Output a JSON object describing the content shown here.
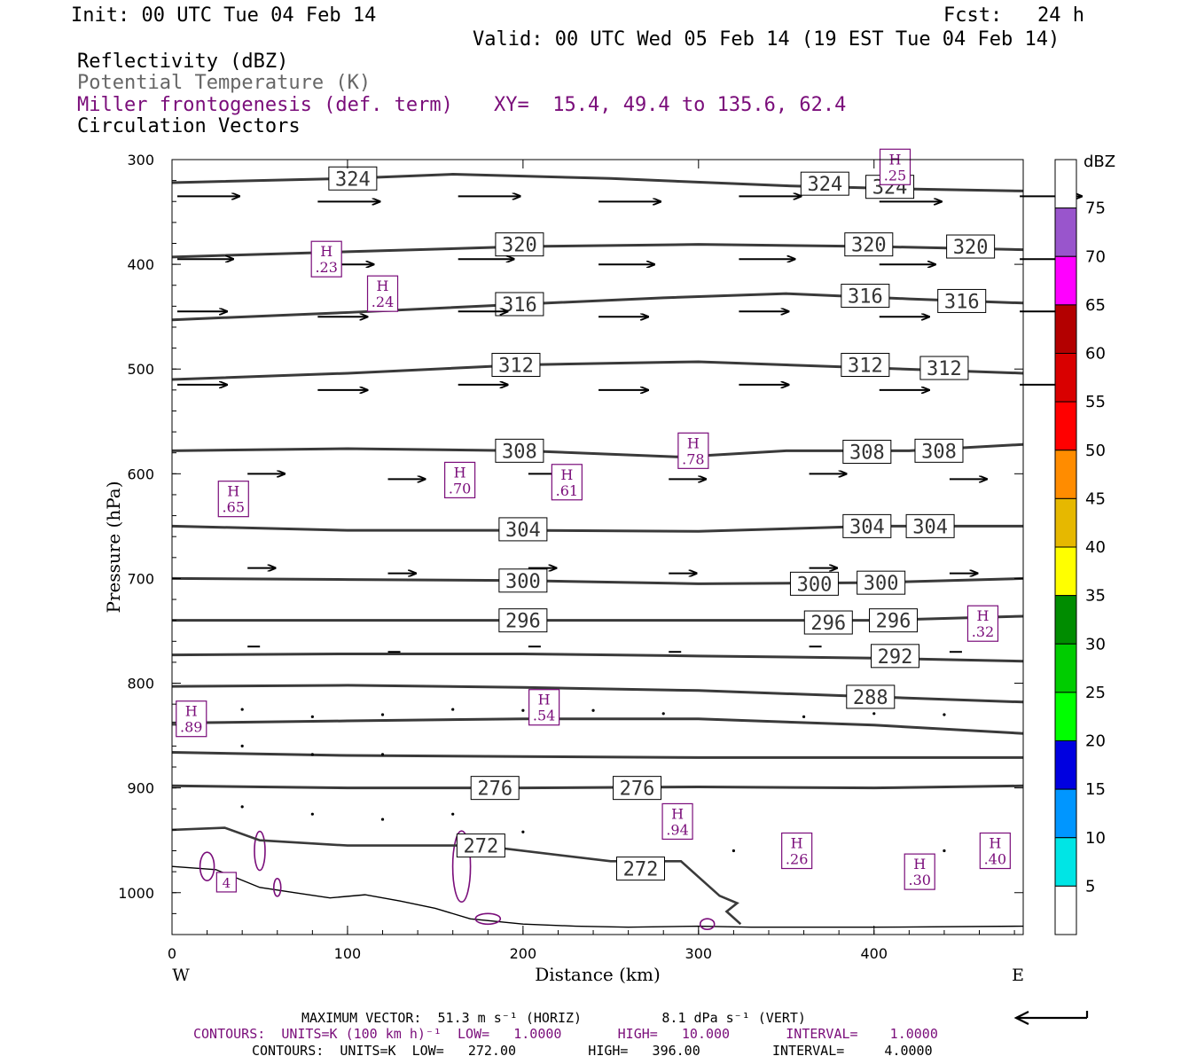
{
  "header": {
    "init": "Init: 00 UTC Tue 04 Feb 14",
    "fcst": "Fcst:   24 h",
    "valid": "Valid: 00 UTC Wed 05 Feb 14 (19 EST Tue 04 Feb 14)",
    "field1": "Reflectivity (dBZ)",
    "field2": "Potential Temperature (K)",
    "field3": "Miller frontogenesis (def. term)",
    "xy": "XY=  15.4, 49.4 to 135.6, 62.4",
    "field4": "Circulation Vectors"
  },
  "colors": {
    "theta": "#3a3a3a",
    "frontogenesis": "#7a0d7a",
    "vectors": "#000000"
  },
  "chart_data": {
    "type": "line",
    "xlabel": "Distance (km)",
    "ylabel": "Pressure (hPa)",
    "xlim": [
      0,
      485
    ],
    "ylim": [
      300,
      1040
    ],
    "y_scale": "linear-inverted",
    "x_ticks": [
      "0",
      "100",
      "200",
      "300",
      "400"
    ],
    "y_ticks": [
      "300",
      "400",
      "500",
      "600",
      "700",
      "800",
      "900",
      "1000"
    ],
    "x_left_label": "W",
    "x_right_label": "E",
    "theta_contours": [
      {
        "level": 324,
        "label": "324",
        "x": [
          0,
          100,
          160,
          250,
          350,
          420,
          485
        ],
        "y": [
          322,
          318,
          314,
          318,
          325,
          328,
          330
        ],
        "labels_at": [
          [
            103,
            318
          ],
          [
            372,
            323
          ],
          [
            409,
            326
          ]
        ]
      },
      {
        "level": 320,
        "label": "320",
        "x": [
          0,
          100,
          200,
          300,
          400,
          485
        ],
        "y": [
          393,
          388,
          383,
          381,
          383,
          386
        ],
        "labels_at": [
          [
            198,
            381
          ],
          [
            397,
            381
          ],
          [
            455,
            383
          ]
        ]
      },
      {
        "level": 316,
        "label": "316",
        "x": [
          0,
          100,
          200,
          280,
          350,
          420,
          485
        ],
        "y": [
          453,
          446,
          438,
          432,
          428,
          433,
          437
        ],
        "labels_at": [
          [
            198,
            438
          ],
          [
            395,
            430
          ],
          [
            450,
            435
          ]
        ]
      },
      {
        "level": 312,
        "label": "312",
        "x": [
          0,
          100,
          200,
          300,
          400,
          485
        ],
        "y": [
          510,
          504,
          496,
          493,
          499,
          504
        ],
        "labels_at": [
          [
            196,
            496
          ],
          [
            395,
            496
          ],
          [
            440,
            499
          ]
        ]
      },
      {
        "level": 308,
        "label": "308",
        "x": [
          0,
          100,
          200,
          290,
          350,
          420,
          485
        ],
        "y": [
          578,
          576,
          578,
          584,
          578,
          578,
          572
        ],
        "labels_at": [
          [
            198,
            578
          ],
          [
            396,
            579
          ],
          [
            437,
            578
          ]
        ]
      },
      {
        "level": 304,
        "label": "304",
        "x": [
          0,
          100,
          200,
          300,
          400,
          485
        ],
        "y": [
          650,
          654,
          654,
          655,
          650,
          650
        ],
        "labels_at": [
          [
            200,
            653
          ],
          [
            396,
            650
          ],
          [
            432,
            650
          ]
        ]
      },
      {
        "level": 300,
        "label": "300",
        "x": [
          0,
          100,
          200,
          300,
          400,
          485
        ],
        "y": [
          700,
          701,
          702,
          705,
          704,
          700
        ],
        "labels_at": [
          [
            200,
            702
          ],
          [
            366,
            705
          ],
          [
            404,
            704
          ]
        ]
      },
      {
        "level": 296,
        "label": "296",
        "x": [
          0,
          100,
          200,
          300,
          400,
          485
        ],
        "y": [
          740,
          740,
          740,
          740,
          740,
          736
        ],
        "labels_at": [
          [
            200,
            740
          ],
          [
            374,
            742
          ],
          [
            411,
            740
          ]
        ]
      },
      {
        "level": 292,
        "label": "292",
        "x": [
          0,
          100,
          200,
          300,
          400,
          485
        ],
        "y": [
          773,
          772,
          772,
          774,
          776,
          779
        ],
        "labels_at": [
          [
            412,
            774
          ]
        ]
      },
      {
        "level": 288,
        "label": "288",
        "x": [
          0,
          100,
          200,
          300,
          400,
          485
        ],
        "y": [
          803,
          802,
          804,
          807,
          813,
          818
        ],
        "labels_at": [
          [
            398,
            813
          ]
        ]
      },
      {
        "level": 284,
        "label": "",
        "x": [
          0,
          100,
          200,
          300,
          400,
          485
        ],
        "y": [
          838,
          836,
          834,
          834,
          840,
          848
        ],
        "labels_at": []
      },
      {
        "level": 280,
        "label": "",
        "x": [
          0,
          100,
          200,
          300,
          400,
          485
        ],
        "y": [
          866,
          869,
          870,
          871,
          871,
          871
        ],
        "labels_at": []
      },
      {
        "level": 276,
        "label": "276",
        "x": [
          0,
          100,
          200,
          300,
          400,
          485
        ],
        "y": [
          898,
          900,
          900,
          899,
          900,
          898
        ],
        "labels_at": [
          [
            184,
            900
          ],
          [
            265,
            900
          ]
        ]
      },
      {
        "level": 272,
        "label": "272",
        "x": [
          0,
          30,
          50,
          100,
          175,
          250,
          290,
          300,
          312,
          322,
          316,
          324
        ],
        "y": [
          940,
          938,
          950,
          955,
          955,
          970,
          970,
          985,
          1003,
          1010,
          1018,
          1030
        ],
        "labels_at": [
          [
            176,
            955
          ],
          [
            267,
            977
          ]
        ]
      }
    ],
    "ground_surface": {
      "x": [
        0,
        25,
        50,
        70,
        90,
        110,
        130,
        150,
        170,
        200,
        230,
        260,
        300,
        330,
        400,
        485
      ],
      "y": [
        975,
        978,
        995,
        1000,
        1005,
        1002,
        1008,
        1015,
        1025,
        1030,
        1032,
        1033,
        1032,
        1033,
        1033,
        1032
      ]
    },
    "frontogenesis_maxima": [
      {
        "x": 35,
        "y": 624,
        "value": ".65"
      },
      {
        "x": 88,
        "y": 395,
        "value": ".23"
      },
      {
        "x": 120,
        "y": 428,
        "value": ".24"
      },
      {
        "x": 412,
        "y": 307,
        "value": ".25"
      },
      {
        "x": 164,
        "y": 606,
        "value": ".70"
      },
      {
        "x": 225,
        "y": 608,
        "value": ".61"
      },
      {
        "x": 297,
        "y": 578,
        "value": ".78"
      },
      {
        "x": 462,
        "y": 743,
        "value": ".32"
      },
      {
        "x": 11,
        "y": 834,
        "value": ".89"
      },
      {
        "x": 212,
        "y": 823,
        "value": ".54"
      },
      {
        "x": 288,
        "y": 932,
        "value": ".94"
      },
      {
        "x": 356,
        "y": 960,
        "value": ".26"
      },
      {
        "x": 426,
        "y": 980,
        "value": ".30"
      },
      {
        "x": 469,
        "y": 960,
        "value": ".40"
      }
    ],
    "low_frontogenesis_labels": [
      {
        "x": 31,
        "y": 990,
        "value": "4"
      }
    ],
    "circulation_vectors": [
      {
        "p": 335,
        "x": [
          0,
          80,
          160,
          240,
          320,
          400,
          480
        ],
        "u": 1.0
      },
      {
        "p": 395,
        "x": [
          0,
          80,
          160,
          240,
          320,
          400,
          480
        ],
        "u": 0.9
      },
      {
        "p": 445,
        "x": [
          0,
          80,
          160,
          240,
          320,
          400,
          480
        ],
        "u": 0.8
      },
      {
        "p": 515,
        "x": [
          0,
          80,
          160,
          240,
          320,
          400,
          480
        ],
        "u": 0.8
      },
      {
        "p": 600,
        "x": [
          40,
          120,
          200,
          280,
          360,
          440
        ],
        "u": 0.6
      },
      {
        "p": 690,
        "x": [
          40,
          120,
          200,
          280,
          360,
          440
        ],
        "u": 0.45
      },
      {
        "p": 765,
        "x": [
          40,
          120,
          200,
          280,
          360,
          440
        ],
        "u": 0.2
      }
    ],
    "legend": {
      "title": "dBZ",
      "levels": [
        "5",
        "10",
        "15",
        "20",
        "25",
        "30",
        "35",
        "40",
        "45",
        "50",
        "55",
        "60",
        "65",
        "70",
        "75"
      ],
      "colors": [
        "#ffffff",
        "#00e5e5",
        "#0096ff",
        "#0000e0",
        "#00ff00",
        "#00cc00",
        "#008c00",
        "#ffff00",
        "#e6b800",
        "#ff8c00",
        "#ff0000",
        "#d90000",
        "#b30000",
        "#ff00ff",
        "#9955cc"
      ],
      "top_color": "#ffffff"
    }
  },
  "footer": {
    "max_vector": "MAXIMUM VECTOR:  51.3 m s⁻¹ (HORIZ)          8.1 dPa s⁻¹ (VERT)",
    "contours_purple": "CONTOURS:  UNITS=K (100 km h)⁻¹  LOW=   1.0000       HIGH=   10.000       INTERVAL=    1.0000",
    "contours_black": "CONTOURS:  UNITS=K  LOW=   272.00         HIGH=   396.00         INTERVAL=     4.0000"
  }
}
